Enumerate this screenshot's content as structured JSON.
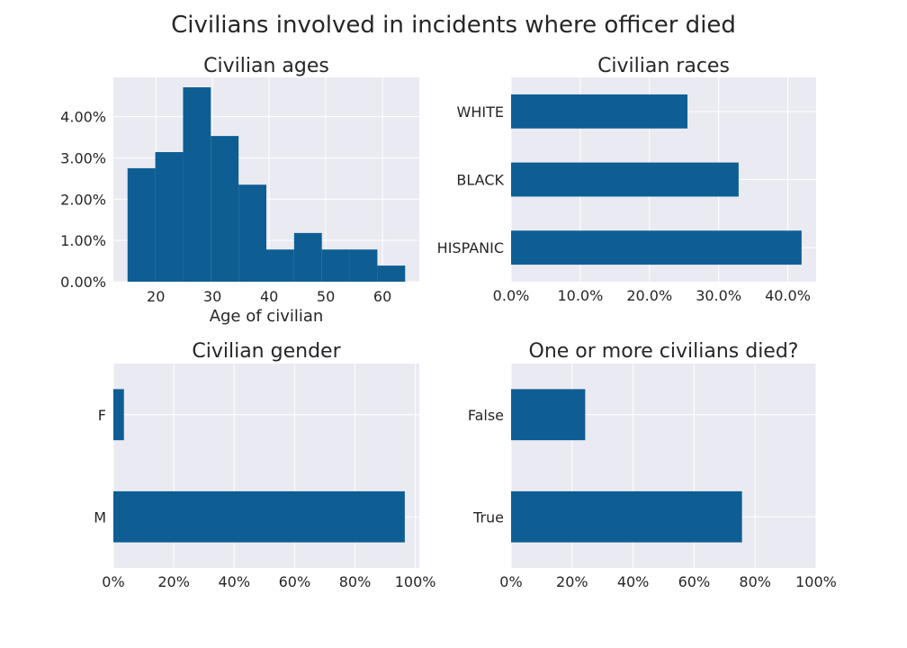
{
  "figure": {
    "title": "Civilians involved in incidents where officer died"
  },
  "colors": {
    "bar": "#0e5e94",
    "plot_bg": "#eaeaf2",
    "grid": "#ffffff",
    "text": "#262626"
  },
  "chart_data": [
    {
      "id": "ages",
      "type": "histogram",
      "title": "Civilian ages",
      "xlabel": "Age of civilian",
      "ylabel": "",
      "bins": [
        {
          "x0": 15,
          "x1": 19.9,
          "value": 2.75
        },
        {
          "x0": 19.9,
          "x1": 24.8,
          "value": 3.14
        },
        {
          "x0": 24.8,
          "x1": 29.7,
          "value": 4.71
        },
        {
          "x0": 29.7,
          "x1": 34.6,
          "value": 3.53
        },
        {
          "x0": 34.6,
          "x1": 39.5,
          "value": 2.35
        },
        {
          "x0": 39.5,
          "x1": 44.4,
          "value": 0.78
        },
        {
          "x0": 44.4,
          "x1": 49.3,
          "value": 1.18
        },
        {
          "x0": 49.3,
          "x1": 54.2,
          "value": 0.78
        },
        {
          "x0": 54.2,
          "x1": 59.1,
          "value": 0.78
        },
        {
          "x0": 59.1,
          "x1": 64.0,
          "value": 0.39
        }
      ],
      "xlim": [
        12.5,
        66.5
      ],
      "ylim": [
        0,
        4.95
      ],
      "xticks": [
        {
          "v": 20,
          "label": "20"
        },
        {
          "v": 30,
          "label": "30"
        },
        {
          "v": 40,
          "label": "40"
        },
        {
          "v": 50,
          "label": "50"
        },
        {
          "v": 60,
          "label": "60"
        }
      ],
      "yticks": [
        {
          "v": 0,
          "label": "0.00%"
        },
        {
          "v": 1,
          "label": "1.00%"
        },
        {
          "v": 2,
          "label": "2.00%"
        },
        {
          "v": 3,
          "label": "3.00%"
        },
        {
          "v": 4,
          "label": "4.00%"
        }
      ],
      "grid": true
    },
    {
      "id": "races",
      "type": "barh",
      "title": "Civilian races",
      "xlabel": "",
      "ylabel": "",
      "categories": [
        "WHITE",
        "BLACK",
        "HISPANIC"
      ],
      "values": [
        25.5,
        32.9,
        42.0
      ],
      "xlim": [
        0,
        44.1
      ],
      "xticks": [
        {
          "v": 0,
          "label": "0.0%"
        },
        {
          "v": 10,
          "label": "10.0%"
        },
        {
          "v": 20,
          "label": "20.0%"
        },
        {
          "v": 30,
          "label": "30.0%"
        },
        {
          "v": 40,
          "label": "40.0%"
        }
      ],
      "grid": true
    },
    {
      "id": "gender",
      "type": "barh",
      "title": "Civilian gender",
      "xlabel": "",
      "ylabel": "",
      "categories": [
        "F",
        "M"
      ],
      "values": [
        3.5,
        96.5
      ],
      "xlim": [
        0,
        101.3
      ],
      "xticks": [
        {
          "v": 0,
          "label": "0%"
        },
        {
          "v": 20,
          "label": "20%"
        },
        {
          "v": 40,
          "label": "40%"
        },
        {
          "v": 60,
          "label": "60%"
        },
        {
          "v": 80,
          "label": "80%"
        },
        {
          "v": 100,
          "label": "100%"
        }
      ],
      "grid": true
    },
    {
      "id": "died",
      "type": "barh",
      "title": "One or more civilians died?",
      "xlabel": "",
      "ylabel": "",
      "categories": [
        "False",
        "True"
      ],
      "values": [
        24.3,
        75.7
      ],
      "xlim": [
        0,
        100
      ],
      "xticks": [
        {
          "v": 0,
          "label": "0%"
        },
        {
          "v": 20,
          "label": "20%"
        },
        {
          "v": 40,
          "label": "40%"
        },
        {
          "v": 60,
          "label": "60%"
        },
        {
          "v": 80,
          "label": "80%"
        },
        {
          "v": 100,
          "label": "100%"
        }
      ],
      "grid": true
    }
  ]
}
